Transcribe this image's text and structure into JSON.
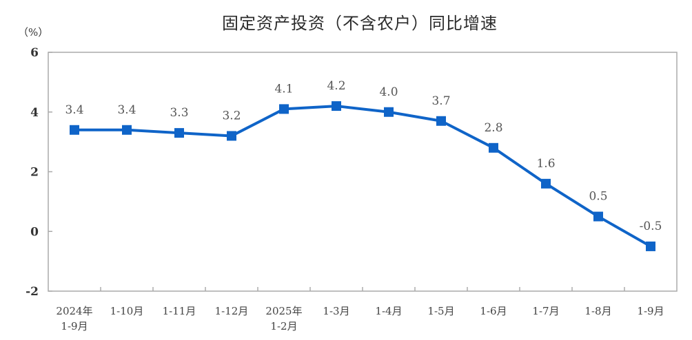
{
  "title": "固定资产投资（不含农户）同比增速",
  "y_unit": "（%）",
  "colors": {
    "line": "#0f64c8",
    "axis": "#aaaaaa",
    "text": "#333333"
  },
  "chart_data": {
    "type": "line",
    "title": "固定资产投资（不含农户）同比增速",
    "xlabel": "",
    "ylabel": "（%）",
    "ylim": [
      -2,
      6
    ],
    "yticks": [
      -2,
      0,
      2,
      4,
      6
    ],
    "grid": false,
    "legend": null,
    "categories": [
      [
        "2024年",
        "1-9月"
      ],
      [
        "1-10月"
      ],
      [
        "1-11月"
      ],
      [
        "1-12月"
      ],
      [
        "2025年",
        "1-2月"
      ],
      [
        "1-3月"
      ],
      [
        "1-4月"
      ],
      [
        "1-5月"
      ],
      [
        "1-6月"
      ],
      [
        "1-7月"
      ],
      [
        "1-8月"
      ],
      [
        "1-9月"
      ]
    ],
    "series": [
      {
        "name": "固定资产投资（不含农户）同比增速",
        "values": [
          3.4,
          3.4,
          3.3,
          3.2,
          4.1,
          4.2,
          4.0,
          3.7,
          2.8,
          1.6,
          0.5,
          -0.5
        ],
        "labels": [
          "3.4",
          "3.4",
          "3.3",
          "3.2",
          "4.1",
          "4.2",
          "4.0",
          "3.7",
          "2.8",
          "1.6",
          "0.5",
          "-0.5"
        ],
        "marker": "square"
      }
    ]
  }
}
